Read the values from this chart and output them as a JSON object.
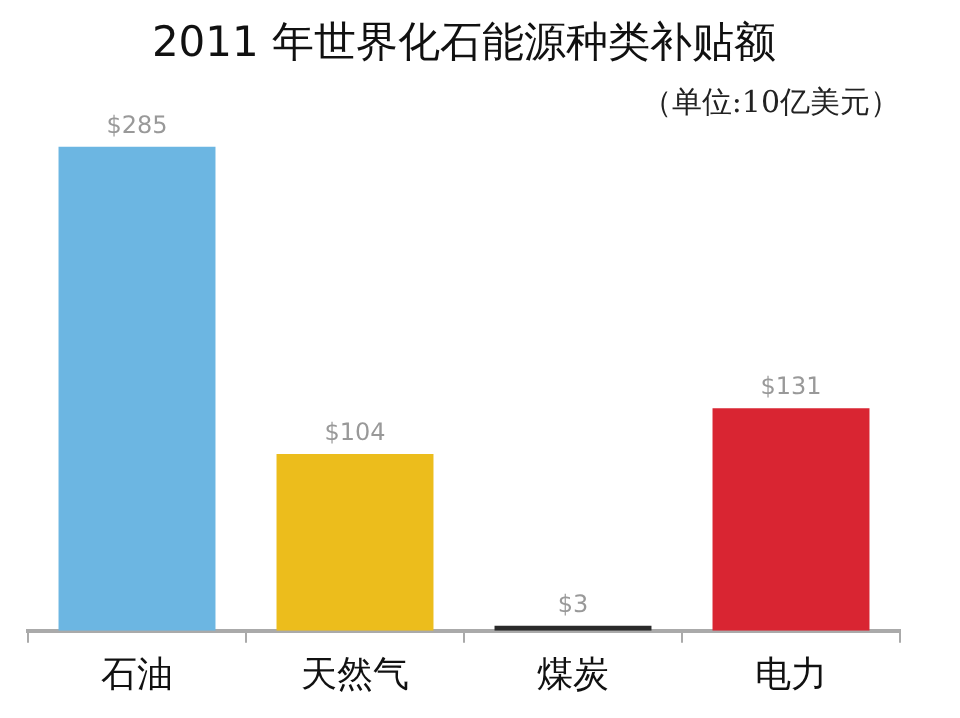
{
  "chart_data": {
    "type": "bar",
    "title": "2011 年世界化石能源种类补贴额",
    "subtitle": "（单位:10亿美元）",
    "categories": [
      "石油",
      "天然气",
      "煤炭",
      "电力"
    ],
    "values": [
      285,
      104,
      3,
      131
    ],
    "colors": [
      "#6cb6e2",
      "#ecbd1c",
      "#2a2a2a",
      "#d92532"
    ],
    "value_labels": [
      "$285",
      "$104",
      "$3",
      "$131"
    ],
    "legend": false
  }
}
